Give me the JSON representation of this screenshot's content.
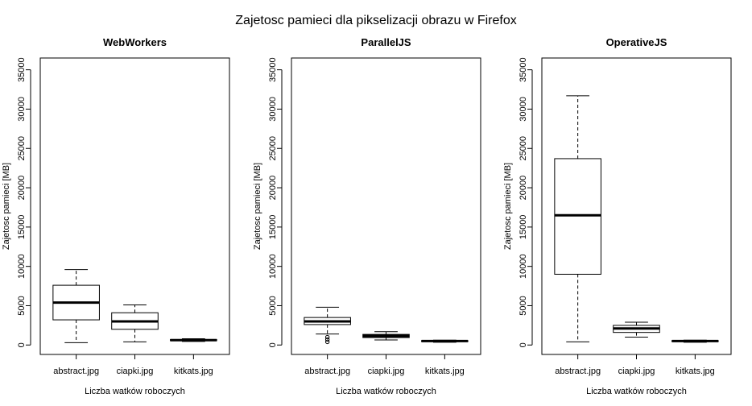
{
  "figure": {
    "title": "Zajetosc pamieci dla pikselizacji obrazu w Firefox"
  },
  "chart_data": [
    {
      "type": "boxplot",
      "title": "WebWorkers",
      "xlabel": "Liczba watków roboczych",
      "ylabel": "Zajetosc pamieci [MB]",
      "ylim": [
        -1200,
        36500
      ],
      "yticks": [
        0,
        5000,
        10000,
        15000,
        20000,
        25000,
        30000,
        35000
      ],
      "categories": [
        "abstract.jpg",
        "ciapki.jpg",
        "kitkats.jpg"
      ],
      "boxes": [
        {
          "whisker_low": 300,
          "q1": 3200,
          "median": 5400,
          "q3": 7600,
          "whisker_high": 9600,
          "outliers": []
        },
        {
          "whisker_low": 400,
          "q1": 2000,
          "median": 3000,
          "q3": 4100,
          "whisker_high": 5100,
          "outliers": []
        },
        {
          "whisker_low": 450,
          "q1": 550,
          "median": 620,
          "q3": 700,
          "whisker_high": 800,
          "outliers": []
        }
      ]
    },
    {
      "type": "boxplot",
      "title": "ParallelJS",
      "xlabel": "Liczba watków roboczych",
      "ylabel": "Zajetosc pamieci [MB]",
      "ylim": [
        -1200,
        36500
      ],
      "yticks": [
        0,
        5000,
        10000,
        15000,
        20000,
        25000,
        30000,
        35000
      ],
      "categories": [
        "abstract.jpg",
        "ciapki.jpg",
        "kitkats.jpg"
      ],
      "boxes": [
        {
          "whisker_low": 1400,
          "q1": 2600,
          "median": 3000,
          "q3": 3500,
          "whisker_high": 4800,
          "outliers": [
            1000,
            700,
            400
          ]
        },
        {
          "whisker_low": 650,
          "q1": 950,
          "median": 1150,
          "q3": 1350,
          "whisker_high": 1700,
          "outliers": []
        },
        {
          "whisker_low": 350,
          "q1": 450,
          "median": 500,
          "q3": 550,
          "whisker_high": 620,
          "outliers": []
        }
      ]
    },
    {
      "type": "boxplot",
      "title": "OperativeJS",
      "xlabel": "Liczba watków roboczych",
      "ylabel": "Zajetosc pamieci [MB]",
      "ylim": [
        -1200,
        36500
      ],
      "yticks": [
        0,
        5000,
        10000,
        15000,
        20000,
        25000,
        30000,
        35000
      ],
      "categories": [
        "abstract.jpg",
        "ciapki.jpg",
        "kitkats.jpg"
      ],
      "boxes": [
        {
          "whisker_low": 400,
          "q1": 9000,
          "median": 16500,
          "q3": 23700,
          "whisker_high": 31700,
          "outliers": []
        },
        {
          "whisker_low": 1000,
          "q1": 1600,
          "median": 2100,
          "q3": 2500,
          "whisker_high": 2900,
          "outliers": []
        },
        {
          "whisker_low": 350,
          "q1": 450,
          "median": 500,
          "q3": 550,
          "whisker_high": 620,
          "outliers": []
        }
      ]
    }
  ]
}
